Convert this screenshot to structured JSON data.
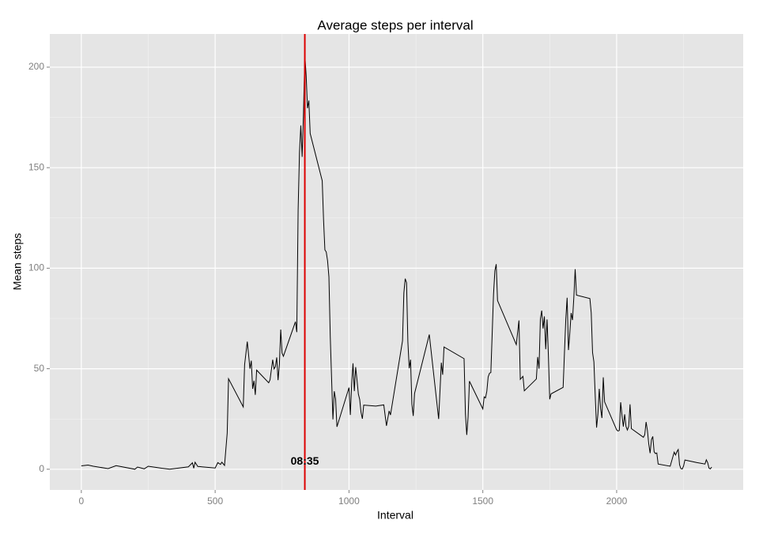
{
  "chart_data": {
    "type": "line",
    "title": "Average steps per interval",
    "x_label": "Interval",
    "y_label": "Mean steps",
    "xlim": [
      -117.75,
      2472.75
    ],
    "xticks": [
      0,
      500,
      1000,
      1500,
      2000
    ],
    "xminor": [
      250,
      750,
      1250,
      1750,
      2250
    ],
    "ylim": [
      -10.3,
      216.5
    ],
    "yticks": [
      0,
      50,
      100,
      150,
      200
    ],
    "yminor": [
      25,
      75,
      125,
      175
    ],
    "grid": true,
    "series": [
      {
        "name": "Mean steps",
        "color": "#000000",
        "x": [
          0,
          25,
          45,
          100,
          130,
          200,
          210,
          235,
          250,
          300,
          330,
          400,
          415,
          420,
          425,
          435,
          500,
          510,
          520,
          525,
          535,
          545,
          550,
          605,
          610,
          620,
          630,
          635,
          640,
          645,
          650,
          655,
          700,
          705,
          715,
          720,
          725,
          730,
          735,
          740,
          745,
          750,
          755,
          800,
          805,
          810,
          815,
          820,
          825,
          830,
          835,
          840,
          845,
          850,
          855,
          900,
          905,
          910,
          915,
          920,
          925,
          930,
          935,
          940,
          945,
          950,
          955,
          1000,
          1005,
          1010,
          1015,
          1020,
          1025,
          1030,
          1035,
          1040,
          1045,
          1050,
          1055,
          1100,
          1130,
          1140,
          1150,
          1155,
          1200,
          1205,
          1210,
          1215,
          1220,
          1225,
          1230,
          1235,
          1240,
          1245,
          1300,
          1335,
          1340,
          1345,
          1350,
          1355,
          1430,
          1435,
          1440,
          1445,
          1450,
          1500,
          1505,
          1510,
          1515,
          1520,
          1525,
          1530,
          1540,
          1545,
          1550,
          1555,
          1625,
          1635,
          1640,
          1645,
          1650,
          1655,
          1700,
          1705,
          1710,
          1715,
          1720,
          1725,
          1730,
          1735,
          1740,
          1745,
          1750,
          1755,
          1800,
          1805,
          1810,
          1815,
          1820,
          1825,
          1830,
          1835,
          1840,
          1845,
          1850,
          1900,
          1905,
          1910,
          1915,
          1920,
          1925,
          1930,
          1935,
          1940,
          1945,
          1950,
          1955,
          2000,
          2005,
          2010,
          2015,
          2020,
          2025,
          2030,
          2035,
          2040,
          2045,
          2050,
          2055,
          2100,
          2105,
          2110,
          2115,
          2120,
          2125,
          2130,
          2135,
          2140,
          2145,
          2150,
          2155,
          2200,
          2215,
          2220,
          2225,
          2230,
          2235,
          2240,
          2245,
          2250,
          2255,
          2300,
          2330,
          2335,
          2340,
          2345,
          2350,
          2355
        ],
        "values": [
          1.7,
          2.1,
          1.5,
          0.3,
          1.8,
          0,
          1.1,
          0.2,
          1.5,
          0.5,
          0,
          1.2,
          3.2,
          0.5,
          3.5,
          1.4,
          0.6,
          3.3,
          2.4,
          3.5,
          1.9,
          18,
          45,
          31,
          52,
          63.5,
          50,
          54,
          40,
          44,
          37,
          49.3,
          43,
          44.5,
          54.5,
          49.9,
          51,
          55.6,
          44.3,
          52.3,
          69.5,
          57.8,
          56.2,
          73.4,
          68.2,
          129,
          157.5,
          171,
          155.4,
          177,
          206.2,
          195.9,
          179.6,
          183.4,
          167,
          143.5,
          124,
          109.1,
          108.1,
          103.7,
          95.7,
          66.2,
          45.2,
          24.8,
          38.8,
          34.98,
          21.1,
          40.6,
          26.98,
          42.4,
          52.7,
          38.9,
          50.8,
          44.3,
          37.4,
          34.7,
          28.3,
          25.1,
          31.9,
          31.4,
          32,
          21.6,
          29,
          27,
          63.9,
          87.7,
          94.8,
          92.8,
          63.4,
          50.2,
          54.5,
          32.4,
          26.5,
          37.7,
          67,
          25,
          39,
          53,
          47,
          60.8,
          55,
          27.5,
          17.1,
          26,
          43.8,
          30,
          36,
          35.5,
          38.8,
          45.96,
          47.75,
          48.1,
          87,
          98.7,
          102,
          83.9,
          62,
          74,
          44.7,
          45.5,
          46.2,
          39,
          44.9,
          55.8,
          50,
          74.7,
          78.9,
          70,
          76,
          59.7,
          74.5,
          56.5,
          34.8,
          37.5,
          40.7,
          58,
          74.7,
          85.3,
          59.3,
          67.8,
          77.7,
          74.2,
          85.3,
          99.5,
          86.6,
          84.9,
          77.8,
          58,
          53.4,
          36.3,
          20.7,
          27.4,
          40,
          30.2,
          25.5,
          45.7,
          33.5,
          19.6,
          19,
          19.3,
          33.3,
          26.8,
          21.2,
          27.3,
          21.3,
          19.5,
          21.3,
          32.3,
          20.2,
          15.9,
          17.2,
          23.5,
          19.2,
          12.5,
          8,
          14.7,
          16.3,
          8.7,
          7.8,
          8.1,
          2.6,
          1.5,
          8.5,
          7.1,
          8.7,
          9.8,
          2.2,
          0.3,
          0.1,
          1.6,
          4.6,
          3.3,
          2.6,
          4.7,
          3.3,
          0.6,
          0.2,
          1.1
        ]
      }
    ],
    "vline": {
      "x": 835,
      "color": "#dd0000"
    },
    "annotation": {
      "text": "08:35",
      "x": 835,
      "y": 3
    }
  }
}
